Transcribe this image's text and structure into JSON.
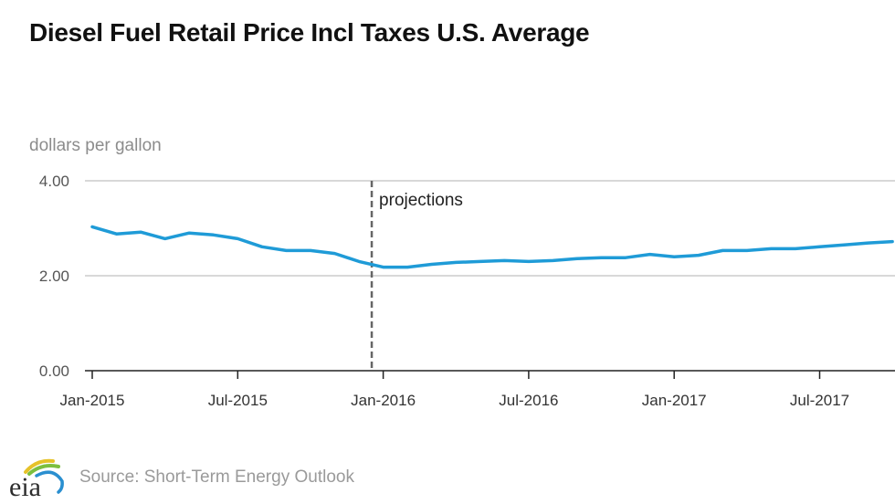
{
  "header": {
    "title": "Diesel Fuel Retail Price Incl Taxes U.S. Average",
    "units_label": "dollars per gallon"
  },
  "footer": {
    "logo_text": "eia",
    "logo_icon": "eia-logo-icon",
    "source": "Source: Short-Term Energy Outlook"
  },
  "colors": {
    "series": "#1f9bd7",
    "grid": "#cccccc",
    "axis": "#222222",
    "divider": "#666666"
  },
  "chart_data": {
    "type": "line",
    "title": "Diesel Fuel Retail Price Incl Taxes U.S. Average",
    "xlabel": "",
    "ylabel": "dollars per gallon",
    "ylim": [
      0,
      4
    ],
    "yticks": [
      0,
      2,
      4
    ],
    "ytick_labels": [
      "0.00",
      "2.00",
      "4.00"
    ],
    "grid": true,
    "legend": "none",
    "xtick_labels": [
      "Jan-2015",
      "Jul-2015",
      "Jan-2016",
      "Jul-2016",
      "Jan-2017",
      "Jul-2017"
    ],
    "xtick_indices": [
      0,
      6,
      12,
      18,
      24,
      30
    ],
    "annotations": [
      {
        "text": "projections",
        "type": "vertical-dashed-line",
        "at": "Dec-2015 / Jan-2016 boundary"
      }
    ],
    "x": [
      "Jan-2015",
      "Feb-2015",
      "Mar-2015",
      "Apr-2015",
      "May-2015",
      "Jun-2015",
      "Jul-2015",
      "Aug-2015",
      "Sep-2015",
      "Oct-2015",
      "Nov-2015",
      "Dec-2015",
      "Jan-2016",
      "Feb-2016",
      "Mar-2016",
      "Apr-2016",
      "May-2016",
      "Jun-2016",
      "Jul-2016",
      "Aug-2016",
      "Sep-2016",
      "Oct-2016",
      "Nov-2016",
      "Dec-2016",
      "Jan-2017",
      "Feb-2017",
      "Mar-2017",
      "Apr-2017",
      "May-2017",
      "Jun-2017",
      "Jul-2017",
      "Aug-2017",
      "Sep-2017",
      "Oct-2017"
    ],
    "series": [
      {
        "name": "Diesel Fuel Retail Price Incl Taxes U.S. Average",
        "values": [
          3.03,
          2.88,
          2.92,
          2.78,
          2.9,
          2.86,
          2.78,
          2.61,
          2.53,
          2.53,
          2.47,
          2.3,
          2.18,
          2.18,
          2.24,
          2.28,
          2.3,
          2.32,
          2.3,
          2.32,
          2.36,
          2.38,
          2.38,
          2.45,
          2.4,
          2.43,
          2.53,
          2.53,
          2.57,
          2.57,
          2.61,
          2.65,
          2.69,
          2.72
        ]
      }
    ]
  }
}
